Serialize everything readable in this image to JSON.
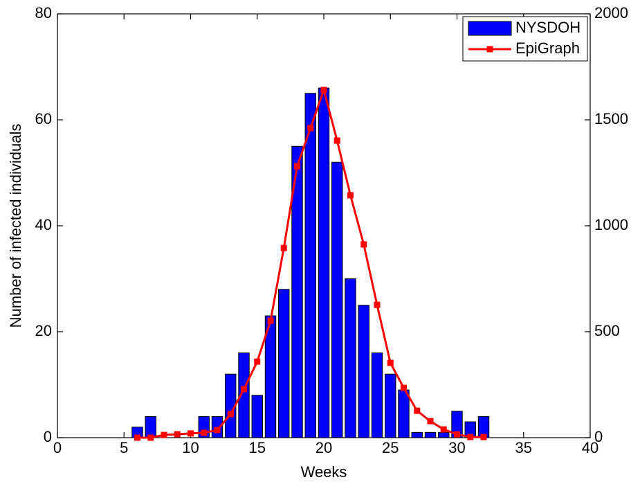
{
  "chart_data": {
    "type": "bar_line",
    "x_label": "Weeks",
    "y_label": "Number of infected individuals",
    "x": [
      6,
      7,
      8,
      9,
      10,
      11,
      12,
      13,
      14,
      15,
      16,
      17,
      18,
      19,
      20,
      21,
      22,
      23,
      24,
      25,
      26,
      27,
      28,
      29,
      30,
      31,
      32
    ],
    "series": [
      {
        "name": "NYSDOH",
        "type": "bar",
        "color": "#0000ff",
        "axis": "y",
        "values": [
          2,
          4,
          0,
          0,
          0,
          4,
          4,
          12,
          16,
          8,
          23,
          28,
          55,
          65,
          66,
          52,
          30,
          25,
          16,
          12,
          9,
          1,
          1,
          1,
          5,
          3,
          4
        ]
      },
      {
        "name": "EpiGraph",
        "type": "line",
        "color": "#ff0000",
        "axis": "y2",
        "values": [
          0,
          0,
          13,
          16,
          20,
          23,
          36,
          111,
          229,
          359,
          552,
          895,
          1281,
          1461,
          1641,
          1402,
          1144,
          912,
          627,
          353,
          235,
          127,
          78,
          39,
          16,
          3,
          3
        ]
      }
    ],
    "xlim": [
      0,
      40
    ],
    "xticks": [
      0,
      5,
      10,
      15,
      20,
      25,
      30,
      35,
      40
    ],
    "ylim": [
      0,
      80
    ],
    "yticks": [
      0,
      20,
      40,
      60,
      80
    ],
    "y2lim": [
      0,
      2000
    ],
    "y2ticks": [
      0,
      500,
      1000,
      1500,
      2000
    ],
    "legend": "upper right",
    "grid": false
  }
}
